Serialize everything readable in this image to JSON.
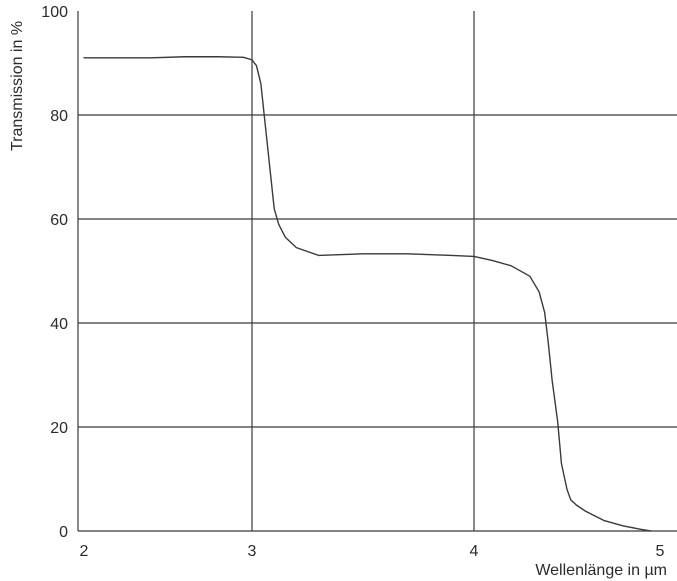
{
  "chart_data": {
    "type": "line",
    "title": "",
    "xlabel": "Wellenlänge in µm",
    "ylabel": "Transmission in %",
    "xlim": [
      2,
      5
    ],
    "ylim": [
      0,
      100
    ],
    "x_ticks": [
      2,
      3,
      4,
      5
    ],
    "x_tick_labels": [
      "2",
      "3",
      "4",
      "5"
    ],
    "y_ticks": [
      0,
      20,
      40,
      60,
      80,
      100
    ],
    "y_tick_labels": [
      "0",
      "20",
      "40",
      "60",
      "80",
      "100"
    ],
    "grid": {
      "horizontal": [
        20,
        40,
        60,
        80
      ],
      "vertical": [
        3,
        4
      ]
    },
    "series": [
      {
        "x": [
          2.0,
          2.4,
          2.6,
          2.8,
          2.95,
          3.0,
          3.02,
          3.04,
          3.06,
          3.08,
          3.1,
          3.12,
          3.15,
          3.2,
          3.3,
          3.5,
          3.7,
          3.9,
          4.0,
          4.1,
          4.2,
          4.3,
          4.35,
          4.38,
          4.4,
          4.42,
          4.45,
          4.47,
          4.5,
          4.52,
          4.55,
          4.6,
          4.7,
          4.8,
          4.9,
          4.95
        ],
        "y": [
          91.0,
          91.0,
          91.2,
          91.2,
          91.1,
          90.6,
          89.5,
          86.0,
          78.0,
          70.0,
          62.0,
          59.0,
          56.5,
          54.5,
          53.0,
          53.3,
          53.3,
          53.0,
          52.8,
          52.0,
          51.0,
          49.0,
          46.0,
          42.0,
          36.0,
          29.0,
          21.0,
          13.0,
          8.0,
          6.0,
          5.0,
          3.8,
          2.0,
          1.0,
          0.3,
          0.0
        ]
      }
    ]
  }
}
